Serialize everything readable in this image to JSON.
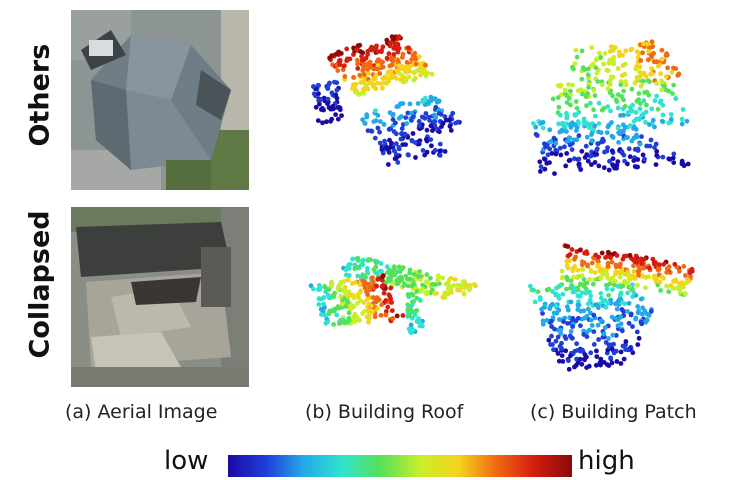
{
  "row_labels": {
    "top": "Others",
    "bottom": "Collapsed"
  },
  "captions": {
    "aerial": "(a) Aerial Image",
    "roof": "(b) Building Roof",
    "patch": "(c) Building Patch"
  },
  "colorbar": {
    "low_label": "low",
    "high_label": "high",
    "stops": [
      "#1a0aa8",
      "#1f3fd8",
      "#25a8e8",
      "#2fe3d0",
      "#55e05a",
      "#c9ee2a",
      "#f5d31c",
      "#f06a12",
      "#d61d10",
      "#8a0a0a"
    ]
  },
  "colors": {
    "roof_gray": "#7d8a92",
    "grass_green": "#5d7a45",
    "debris": "#a7a49a"
  }
}
